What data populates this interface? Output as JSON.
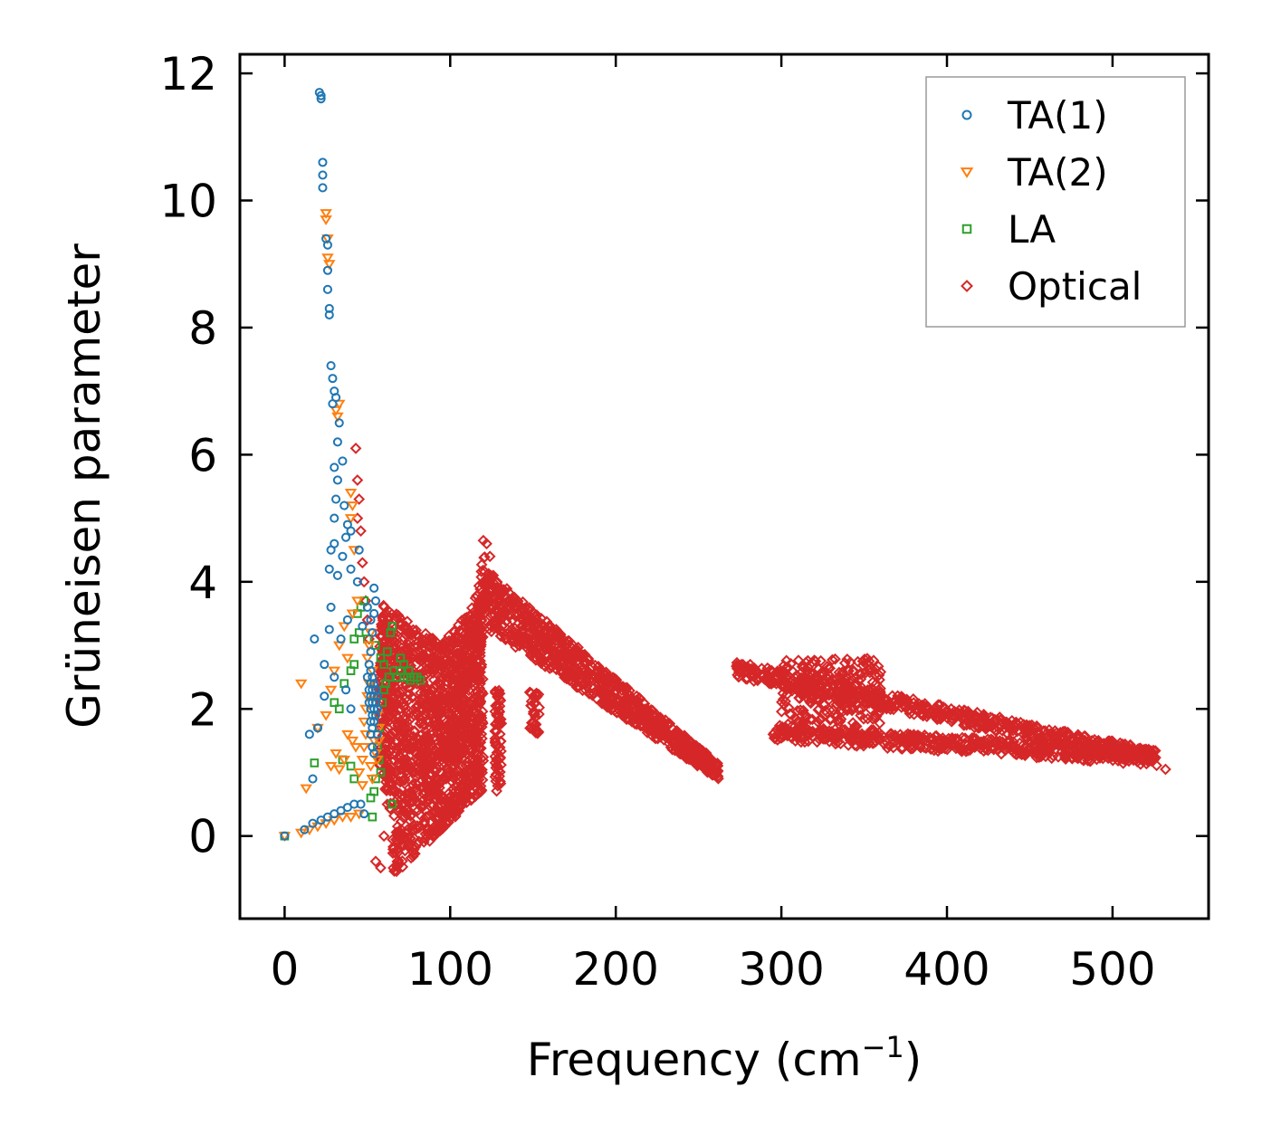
{
  "chart_data": {
    "type": "scatter",
    "title": "",
    "xlabel": "Frequency (cm",
    "xlabel_sup": "−1",
    "xlabel_suffix": ")",
    "ylabel": "Grüneisen parameter",
    "xlim": [
      -27,
      558
    ],
    "ylim": [
      -1.3,
      12.3
    ],
    "xticks": [
      0,
      100,
      200,
      300,
      400,
      500
    ],
    "yticks": [
      0,
      2,
      4,
      6,
      8,
      10,
      12
    ],
    "grid": false,
    "legend_position": "top-right",
    "series": [
      {
        "name": "TA(1)",
        "marker": "circle",
        "color": "#1f77b4",
        "points": [
          [
            0,
            0
          ],
          [
            12,
            0.1
          ],
          [
            17,
            0.2
          ],
          [
            22,
            0.25
          ],
          [
            26,
            0.3
          ],
          [
            30,
            0.35
          ],
          [
            34,
            0.4
          ],
          [
            38,
            0.45
          ],
          [
            42,
            0.5
          ],
          [
            46,
            0.5
          ],
          [
            48,
            0.35
          ],
          [
            17,
            0.9
          ],
          [
            15,
            1.6
          ],
          [
            20,
            1.7
          ],
          [
            24,
            2.2
          ],
          [
            18,
            3.1
          ],
          [
            24,
            2.7
          ],
          [
            27,
            3.25
          ],
          [
            30,
            2.5
          ],
          [
            28,
            3.6
          ],
          [
            34,
            3.1
          ],
          [
            37,
            2.3
          ],
          [
            38,
            3.4
          ],
          [
            40,
            2.0
          ],
          [
            27,
            4.2
          ],
          [
            28,
            4.5
          ],
          [
            30,
            4.6
          ],
          [
            32,
            4.1
          ],
          [
            35,
            4.4
          ],
          [
            37,
            4.7
          ],
          [
            40,
            4.2
          ],
          [
            44,
            4.0
          ],
          [
            45,
            4.5
          ],
          [
            47,
            3.3
          ],
          [
            50,
            3.6
          ],
          [
            52,
            3.4
          ],
          [
            54,
            3.9
          ],
          [
            30,
            5.0
          ],
          [
            31,
            5.3
          ],
          [
            32,
            5.6
          ],
          [
            30,
            5.8
          ],
          [
            32,
            6.2
          ],
          [
            33,
            6.5
          ],
          [
            35,
            5.9
          ],
          [
            36,
            5.2
          ],
          [
            38,
            4.9
          ],
          [
            40,
            4.8
          ],
          [
            29,
            6.8
          ],
          [
            29,
            7.2
          ],
          [
            28,
            7.4
          ],
          [
            30,
            7.0
          ],
          [
            31,
            6.9
          ],
          [
            27,
            8.2
          ],
          [
            26,
            8.6
          ],
          [
            27,
            8.3
          ],
          [
            26,
            8.9
          ],
          [
            26,
            9.3
          ],
          [
            25,
            9.4
          ],
          [
            23,
            10.2
          ],
          [
            23,
            10.4
          ],
          [
            23,
            10.6
          ],
          [
            22,
            11.6
          ],
          [
            21,
            11.7
          ],
          [
            22,
            11.65
          ],
          [
            52,
            1.6
          ],
          [
            52,
            1.8
          ],
          [
            52,
            2.0
          ],
          [
            52,
            2.2
          ],
          [
            52,
            2.4
          ],
          [
            52,
            2.6
          ],
          [
            53,
            1.7
          ],
          [
            53,
            1.9
          ],
          [
            53,
            2.1
          ],
          [
            53,
            2.3
          ],
          [
            53,
            2.5
          ],
          [
            54,
            1.8
          ],
          [
            54,
            2.0
          ],
          [
            54,
            2.2
          ],
          [
            54,
            2.4
          ],
          [
            55,
            1.9
          ],
          [
            55,
            2.1
          ],
          [
            55,
            2.3
          ],
          [
            56,
            2.0
          ],
          [
            56,
            2.2
          ],
          [
            51,
            2.1
          ],
          [
            51,
            2.3
          ],
          [
            50,
            2.5
          ],
          [
            51,
            2.7
          ],
          [
            52,
            2.9
          ],
          [
            53,
            3.2
          ],
          [
            54,
            3.5
          ],
          [
            55,
            3.7
          ],
          [
            53,
            1.4
          ],
          [
            54,
            1.3
          ],
          [
            56,
            1.6
          ]
        ]
      },
      {
        "name": "TA(2)",
        "marker": "triangle-down",
        "color": "#ff7f0e",
        "points": [
          [
            0,
            0
          ],
          [
            10,
            0.05
          ],
          [
            15,
            0.1
          ],
          [
            20,
            0.15
          ],
          [
            25,
            0.2
          ],
          [
            30,
            0.25
          ],
          [
            35,
            0.3
          ],
          [
            40,
            0.3
          ],
          [
            45,
            0.35
          ],
          [
            13,
            0.75
          ],
          [
            10,
            2.4
          ],
          [
            20,
            1.7
          ],
          [
            25,
            1.9
          ],
          [
            28,
            1.1
          ],
          [
            31,
            1.3
          ],
          [
            33,
            1.05
          ],
          [
            36,
            1.2
          ],
          [
            38,
            1.6
          ],
          [
            41,
            1.5
          ],
          [
            43,
            1.4
          ],
          [
            45,
            1.0
          ],
          [
            47,
            0.8
          ],
          [
            28,
            2.3
          ],
          [
            30,
            2.6
          ],
          [
            33,
            3.0
          ],
          [
            36,
            3.3
          ],
          [
            38,
            2.8
          ],
          [
            41,
            3.5
          ],
          [
            44,
            3.7
          ],
          [
            40,
            5.0
          ],
          [
            41,
            5.2
          ],
          [
            40,
            5.4
          ],
          [
            42,
            4.5
          ],
          [
            32,
            6.6
          ],
          [
            33,
            6.8
          ],
          [
            31,
            6.7
          ],
          [
            27,
            9.0
          ],
          [
            26,
            9.1
          ],
          [
            25,
            9.7
          ],
          [
            25,
            9.8
          ],
          [
            26,
            9.4
          ],
          [
            48,
            1.8
          ],
          [
            49,
            2.0
          ],
          [
            50,
            2.2
          ],
          [
            51,
            2.4
          ],
          [
            50,
            2.8
          ],
          [
            51,
            3.0
          ],
          [
            52,
            3.2
          ],
          [
            53,
            2.6
          ],
          [
            54,
            1.5
          ],
          [
            55,
            1.3
          ],
          [
            56,
            1.2
          ],
          [
            57,
            1.5
          ],
          [
            57,
            1.7
          ],
          [
            56,
            1.9
          ],
          [
            54,
            2.2
          ],
          [
            52,
            2.4
          ],
          [
            49,
            1.6
          ],
          [
            48,
            1.4
          ],
          [
            47,
            1.2
          ],
          [
            52,
            1.1
          ],
          [
            53,
            0.9
          ]
        ]
      },
      {
        "name": "LA",
        "marker": "square",
        "color": "#2ca02c",
        "points": [
          [
            0,
            0
          ],
          [
            18,
            1.15
          ],
          [
            35,
            1.2
          ],
          [
            40,
            1.1
          ],
          [
            42,
            0.9
          ],
          [
            52,
            0.6
          ],
          [
            53,
            0.3
          ],
          [
            65,
            0.5
          ],
          [
            30,
            2.1
          ],
          [
            33,
            2.0
          ],
          [
            36,
            2.4
          ],
          [
            40,
            2.6
          ],
          [
            42,
            2.7
          ],
          [
            42,
            3.1
          ],
          [
            44,
            3.5
          ],
          [
            46,
            3.6
          ],
          [
            48,
            3.7
          ],
          [
            45,
            3.2
          ],
          [
            50,
            3.1
          ],
          [
            55,
            3.0
          ],
          [
            58,
            2.8
          ],
          [
            60,
            2.7
          ],
          [
            62,
            2.9
          ],
          [
            64,
            3.2
          ],
          [
            65,
            3.3
          ],
          [
            66,
            2.6
          ],
          [
            68,
            2.5
          ],
          [
            70,
            2.6
          ],
          [
            72,
            2.5
          ],
          [
            74,
            2.5
          ],
          [
            76,
            2.45
          ],
          [
            78,
            2.5
          ],
          [
            80,
            2.5
          ],
          [
            82,
            2.45
          ],
          [
            70,
            2.8
          ],
          [
            72,
            2.7
          ],
          [
            75,
            2.6
          ],
          [
            61,
            2.4
          ],
          [
            63,
            2.5
          ],
          [
            56,
            1.4
          ],
          [
            57,
            1.2
          ],
          [
            58,
            1.0
          ],
          [
            55,
            0.9
          ],
          [
            54,
            0.7
          ],
          [
            57,
            1.7
          ],
          [
            59,
            2.1
          ],
          [
            60,
            2.3
          ]
        ]
      },
      {
        "name": "Optical",
        "marker": "diamond",
        "color": "#d62728",
        "points": "generated"
      }
    ]
  },
  "legend": {
    "entries": [
      "TA(1)",
      "TA(2)",
      "LA",
      "Optical"
    ]
  }
}
